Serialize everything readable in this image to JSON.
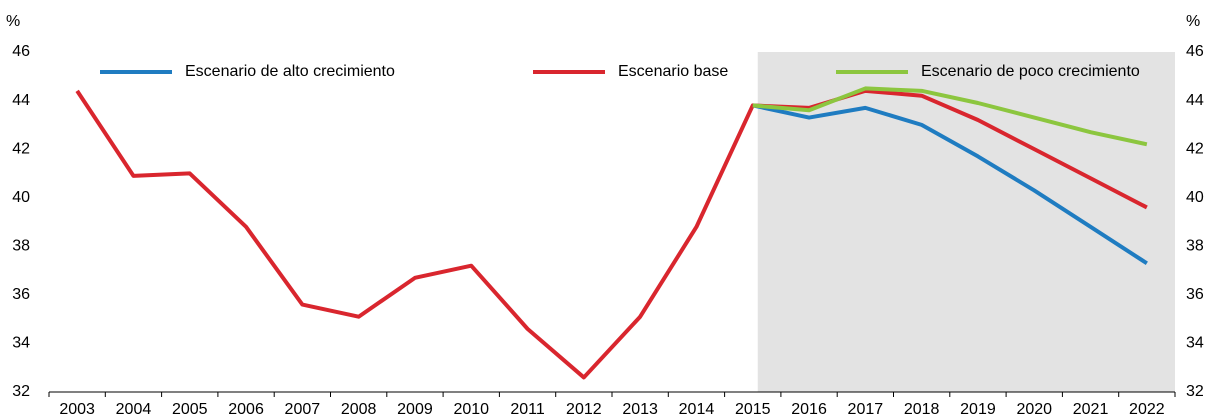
{
  "chart_data": {
    "type": "line",
    "y_unit": "%",
    "categories": [
      "2003",
      "2004",
      "2005",
      "2006",
      "2007",
      "2008",
      "2009",
      "2010",
      "2011",
      "2012",
      "2013",
      "2014",
      "2015",
      "2016",
      "2017",
      "2018",
      "2019",
      "2020",
      "2021",
      "2022"
    ],
    "shaded_from": "2015",
    "series": [
      {
        "name": "Escenario de alto crecimiento",
        "color": "#1f7cc1",
        "values": [
          null,
          null,
          null,
          null,
          null,
          null,
          null,
          null,
          null,
          null,
          null,
          null,
          43.8,
          43.3,
          43.7,
          43.0,
          41.7,
          40.3,
          38.8,
          37.3
        ]
      },
      {
        "name": "Escenario base",
        "color": "#d9262e",
        "values": [
          44.4,
          40.9,
          41.0,
          38.8,
          35.6,
          35.1,
          36.7,
          37.2,
          34.6,
          32.6,
          35.1,
          38.8,
          43.8,
          43.7,
          44.4,
          44.2,
          43.2,
          42.0,
          40.8,
          39.6
        ]
      },
      {
        "name": "Escenario de poco crecimiento",
        "color": "#8cc63f",
        "values": [
          null,
          null,
          null,
          null,
          null,
          null,
          null,
          null,
          null,
          null,
          null,
          null,
          43.8,
          43.6,
          44.5,
          44.4,
          43.9,
          43.3,
          42.7,
          42.2
        ]
      }
    ],
    "ylim": [
      32,
      46
    ],
    "yticks": [
      32,
      34,
      36,
      38,
      40,
      42,
      44,
      46
    ],
    "grid": true
  }
}
